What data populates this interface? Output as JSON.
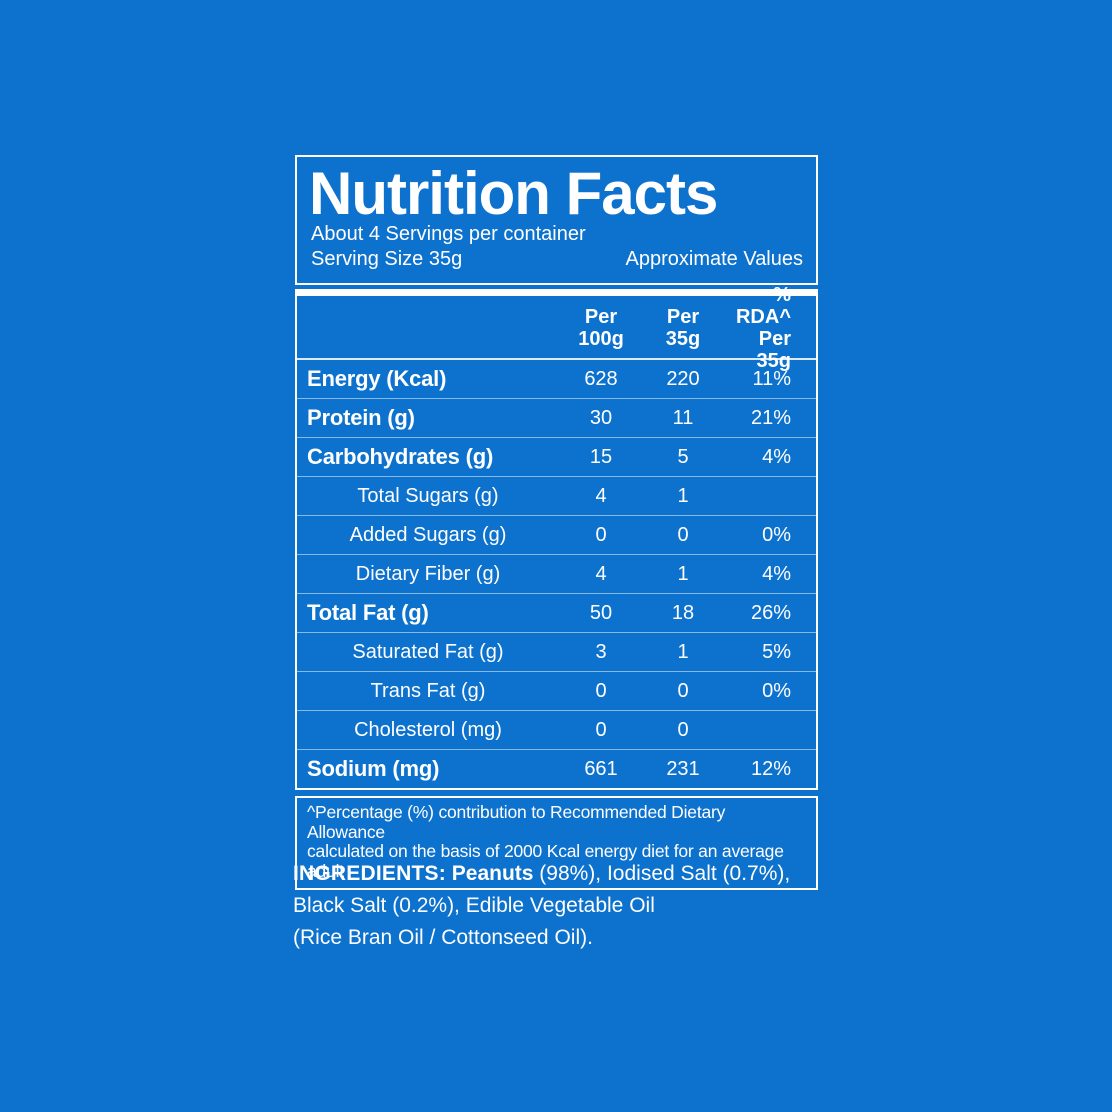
{
  "colors": {
    "background": "#0d72cd",
    "text": "#ffffff",
    "divider": "rgba(255,255,255,0.5)"
  },
  "panel": {
    "title": "Nutrition Facts",
    "servings_line": "About 4 Servings per container",
    "serving_size_line": "Serving Size 35g",
    "approx_values_label": "Approximate Values",
    "columns": [
      {
        "line1": "Per",
        "line2": "100g"
      },
      {
        "line1": "Per",
        "line2": "35g"
      },
      {
        "line1": "% RDA^",
        "line2": "Per 35g"
      }
    ],
    "rows": [
      {
        "label": "Energy (Kcal)",
        "per100": "628",
        "per35": "220",
        "rda": "11%"
      },
      {
        "label": "Protein (g)",
        "per100": "30",
        "per35": "11",
        "rda": "21%"
      },
      {
        "label": "Carbohydrates (g)",
        "per100": "15",
        "per35": "5",
        "rda": "4%"
      },
      {
        "label": "Total Sugars (g)",
        "per100": "4",
        "per35": "1",
        "rda": ""
      },
      {
        "label": "Added Sugars (g)",
        "per100": "0",
        "per35": "0",
        "rda": "0%"
      },
      {
        "label": "Dietary Fiber (g)",
        "per100": "4",
        "per35": "1",
        "rda": "4%"
      },
      {
        "label": "Total Fat (g)",
        "per100": "50",
        "per35": "18",
        "rda": "26%"
      },
      {
        "label": "Saturated Fat (g)",
        "per100": "3",
        "per35": "1",
        "rda": "5%"
      },
      {
        "label": "Trans Fat (g)",
        "per100": "0",
        "per35": "0",
        "rda": "0%"
      },
      {
        "label": "Cholesterol (mg)",
        "per100": "0",
        "per35": "0",
        "rda": ""
      },
      {
        "label": "Sodium (mg)",
        "per100": "661",
        "per35": "231",
        "rda": "12%"
      }
    ],
    "footnote_line1": "^Percentage (%) contribution to Recommended Dietary Allowance",
    "footnote_line2": "calculated on the basis of 2000 Kcal energy diet for an average adult"
  },
  "ingredients": {
    "heading": "INGREDIENTS:",
    "line1_bold": " Peanuts",
    "line1_rest": " (98%), Iodised Salt (0.7%),",
    "line2": "Black Salt (0.2%), Edible Vegetable Oil",
    "line3": "(Rice Bran Oil / Cottonseed Oil)."
  }
}
